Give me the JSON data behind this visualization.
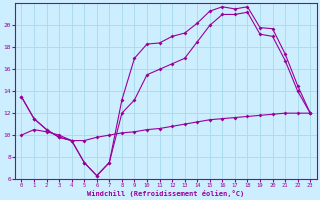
{
  "background_color": "#cceeff",
  "grid_color": "#aaddee",
  "line_color": "#990099",
  "xlim": [
    -0.5,
    23.5
  ],
  "ylim": [
    6,
    22
  ],
  "yticks": [
    6,
    8,
    10,
    12,
    14,
    16,
    18,
    20
  ],
  "xticks": [
    0,
    1,
    2,
    3,
    4,
    5,
    6,
    7,
    8,
    9,
    10,
    11,
    12,
    13,
    14,
    15,
    16,
    17,
    18,
    19,
    20,
    21,
    22,
    23
  ],
  "xlabel": "Windchill (Refroidissement éolien,°C)",
  "line1_x": [
    0,
    1,
    2,
    3,
    4,
    5,
    6,
    7,
    8,
    9,
    10,
    11,
    12,
    13,
    14,
    15,
    16,
    17,
    18,
    19,
    20,
    21,
    22,
    23
  ],
  "line1_y": [
    13.5,
    11.5,
    10.5,
    9.8,
    9.5,
    7.5,
    6.3,
    7.5,
    13.2,
    17.0,
    18.3,
    18.4,
    19.0,
    19.3,
    20.2,
    21.3,
    21.7,
    21.5,
    21.7,
    19.8,
    19.7,
    17.4,
    14.5,
    12.0
  ],
  "line2_x": [
    0,
    1,
    2,
    3,
    4,
    5,
    6,
    7,
    8,
    9,
    10,
    11,
    12,
    13,
    14,
    15,
    16,
    17,
    18,
    19,
    20,
    21,
    22,
    23
  ],
  "line2_y": [
    13.5,
    11.5,
    10.5,
    9.8,
    9.5,
    7.5,
    6.3,
    7.5,
    12.0,
    13.2,
    15.5,
    16.0,
    16.5,
    17.0,
    18.5,
    20.0,
    21.0,
    21.0,
    21.2,
    19.2,
    19.0,
    16.8,
    14.0,
    12.0
  ],
  "line3_x": [
    0,
    1,
    2,
    3,
    4,
    5,
    6,
    7,
    8,
    9,
    10,
    11,
    12,
    13,
    14,
    15,
    16,
    17,
    18,
    19,
    20,
    21,
    22,
    23
  ],
  "line3_y": [
    10.0,
    10.5,
    10.3,
    10.0,
    9.5,
    9.5,
    9.8,
    10.0,
    10.2,
    10.3,
    10.5,
    10.6,
    10.8,
    11.0,
    11.2,
    11.4,
    11.5,
    11.6,
    11.7,
    11.8,
    11.9,
    12.0,
    12.0,
    12.0
  ]
}
